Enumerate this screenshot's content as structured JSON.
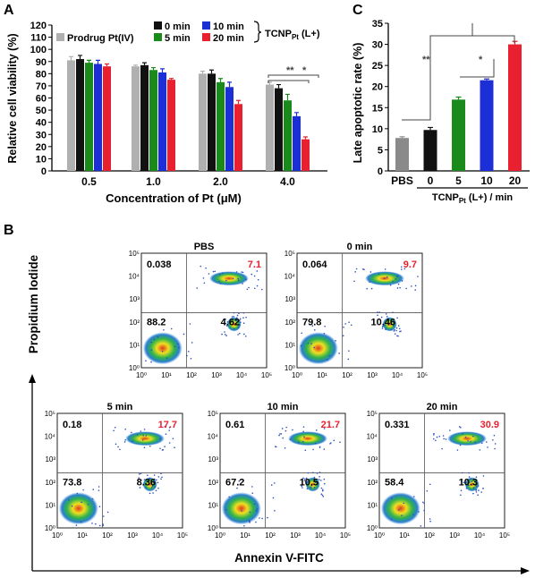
{
  "panels": {
    "a": "A",
    "b": "B",
    "c": "C"
  },
  "colors": {
    "prodrug": "#b0b0b0",
    "t0": "#111111",
    "t5": "#1a8a1a",
    "t10": "#1c2fd6",
    "t20": "#e8202f",
    "sig_line": "#444444"
  },
  "chart_data": [
    {
      "type": "bar",
      "panel": "A",
      "categories": [
        "0.5",
        "1.0",
        "2.0",
        "4.0"
      ],
      "xlabel": "Concentration of Pt (μM)",
      "ylabel": "Relative cell viability (%)",
      "ylim": [
        0,
        120
      ],
      "yticks": [
        0,
        10,
        20,
        30,
        40,
        50,
        60,
        70,
        80,
        90,
        100,
        110,
        120
      ],
      "legend": {
        "prodrug": "Prodrug Pt(IV)",
        "t0": "0 min",
        "t5": "5 min",
        "t10": "10 min",
        "t20": "20 min",
        "group_base": "TCNP",
        "group_sub": "Pt",
        "group_suffix": " (L+)"
      },
      "series": [
        {
          "name": "Prodrug Pt(IV)",
          "key": "prodrug",
          "values": [
            91,
            86,
            80,
            71
          ],
          "errors": [
            3,
            1,
            2,
            2
          ]
        },
        {
          "name": "0 min",
          "key": "t0",
          "values": [
            92,
            87,
            80,
            68
          ],
          "errors": [
            3,
            2,
            3,
            3
          ]
        },
        {
          "name": "5 min",
          "key": "t5",
          "values": [
            89,
            83,
            73,
            58
          ],
          "errors": [
            2,
            2,
            3,
            5
          ]
        },
        {
          "name": "10 min",
          "key": "t10",
          "values": [
            88,
            81,
            69,
            45
          ],
          "errors": [
            3,
            3,
            4,
            3
          ]
        },
        {
          "name": "20 min",
          "key": "t20",
          "values": [
            86,
            75,
            55,
            26
          ],
          "errors": [
            2,
            1,
            3,
            2
          ]
        }
      ],
      "annotations": [
        "**",
        "*"
      ]
    },
    {
      "type": "bar",
      "panel": "C",
      "categories": [
        "PBS",
        "0",
        "5",
        "10",
        "20"
      ],
      "xlabel_base": "TCNP",
      "xlabel_sub": "Pt",
      "xlabel_suffix": " (L+) / min",
      "ylabel": "Late apoptotic rate (%)",
      "ylim": [
        0,
        35
      ],
      "yticks": [
        0,
        5,
        10,
        15,
        20,
        25,
        30,
        35
      ],
      "values": [
        7.8,
        9.7,
        16.9,
        21.5,
        30.0
      ],
      "errors": [
        0.3,
        0.6,
        0.6,
        0.3,
        0.7
      ],
      "annotations": [
        "**",
        "*"
      ]
    },
    {
      "type": "scatter",
      "panel": "B",
      "xlabel": "Annexin V-FITC",
      "ylabel": "Propidium Iodide",
      "axis_scale": "log",
      "tick_labels": [
        "10⁰",
        "10¹",
        "10²",
        "10³",
        "10⁴",
        "10⁵"
      ],
      "plots": [
        {
          "title": "PBS",
          "q_ul": "0.038",
          "q_ur": "7.1",
          "q_ll": "88.2",
          "q_lr": "4.62"
        },
        {
          "title": "0 min",
          "q_ul": "0.064",
          "q_ur": "9.7",
          "q_ll": "79.8",
          "q_lr": "10.46"
        },
        {
          "title": "5 min",
          "q_ul": "0.18",
          "q_ur": "17.7",
          "q_ll": "73.8",
          "q_lr": "8.36"
        },
        {
          "title": "10 min",
          "q_ul": "0.61",
          "q_ur": "21.7",
          "q_ll": "67.2",
          "q_lr": "10.5"
        },
        {
          "title": "20 min",
          "q_ul": "0.331",
          "q_ur": "30.9",
          "q_ll": "58.4",
          "q_lr": "10.3"
        }
      ]
    }
  ]
}
